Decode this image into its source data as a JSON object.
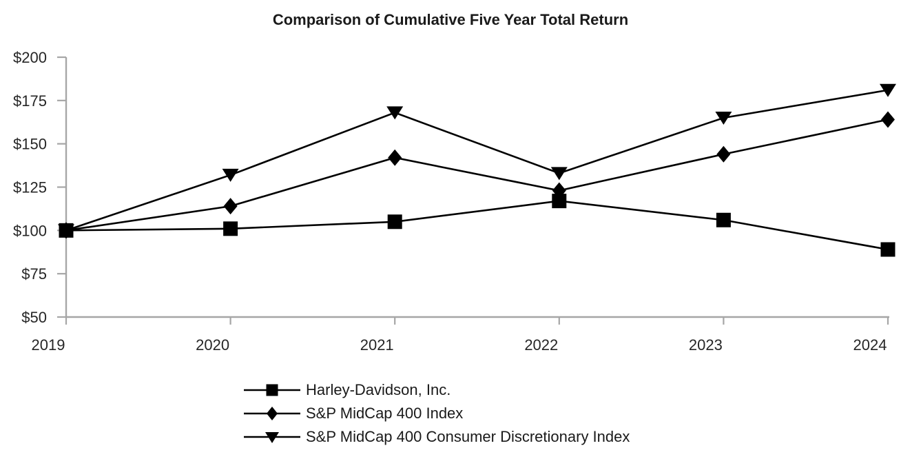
{
  "title": "Comparison of Cumulative Five Year Total Return",
  "chart_data": {
    "type": "line",
    "title": "Comparison of Cumulative Five Year Total Return",
    "x_labels": [
      "2019",
      "2020",
      "2021",
      "2022",
      "2023",
      "2024"
    ],
    "series": [
      {
        "name": "Harley-Davidson, Inc.",
        "marker": "square",
        "values": [
          100,
          101,
          105,
          117,
          106,
          89
        ]
      },
      {
        "name": "S&P MidCap 400 Index",
        "marker": "diamond",
        "values": [
          100,
          114,
          142,
          123,
          144,
          164
        ]
      },
      {
        "name": "S&P MidCap 400 Consumer Discretionary Index",
        "marker": "triangle-down",
        "values": [
          100,
          132,
          168,
          133,
          165,
          181
        ]
      }
    ],
    "y_axis": {
      "min": 50,
      "max": 200,
      "tick_values": [
        50,
        75,
        100,
        125,
        150,
        175,
        200
      ],
      "tick_prefix": "$"
    },
    "grid": false,
    "legend_position": "bottom-left",
    "colors": {
      "series_line": "#000000",
      "axis_line": "#a6a6a6",
      "label_text": "#262626"
    }
  }
}
